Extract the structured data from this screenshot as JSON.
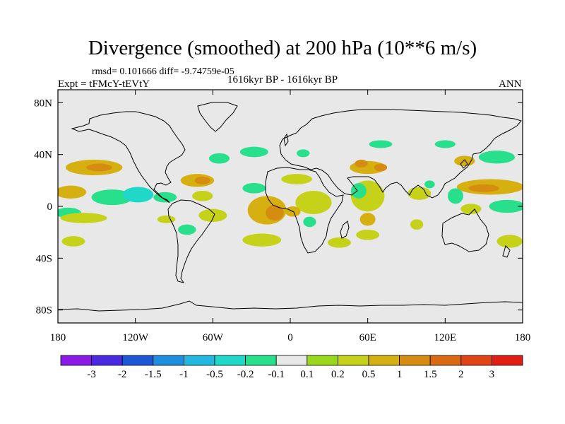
{
  "chart_data": {
    "type": "heatmap",
    "title": "Divergence (smoothed) at 200 hPa (10**6 m/s)",
    "stats_text": "rmsd= 0.101666  diff= -9.74759e-05",
    "experiment": "Expt = tFMcY-tEVtY",
    "period": "1616kyr BP - 1616kyr BP",
    "season": "ANN",
    "xlim": [
      -180,
      180
    ],
    "ylim": [
      -90,
      90
    ],
    "x_ticks": [
      {
        "value": -180,
        "label": "180"
      },
      {
        "value": -120,
        "label": "120W"
      },
      {
        "value": -60,
        "label": "60W"
      },
      {
        "value": 0,
        "label": "0"
      },
      {
        "value": 60,
        "label": "60E"
      },
      {
        "value": 120,
        "label": "120E"
      },
      {
        "value": 180,
        "label": "180"
      }
    ],
    "y_ticks": [
      {
        "value": 80,
        "label": "80N"
      },
      {
        "value": 40,
        "label": "40N"
      },
      {
        "value": 0,
        "label": "0"
      },
      {
        "value": -40,
        "label": "40S"
      },
      {
        "value": -80,
        "label": "80S"
      }
    ],
    "colorbar": {
      "colors": [
        "#8c1ae6",
        "#4a2ae0",
        "#1c57d6",
        "#1e8fe0",
        "#23b8e0",
        "#20d8c8",
        "#28e08c",
        "#e8e8e8",
        "#9ad81e",
        "#c6d21a",
        "#d6b010",
        "#d68c10",
        "#da6a12",
        "#e04414",
        "#e01e14"
      ],
      "labels": [
        "-3",
        "-2",
        "-1.5",
        "-1",
        "-0.5",
        "-0.2",
        "-0.1",
        "0.1",
        "0.2",
        "0.5",
        "1",
        "1.5",
        "2",
        "3"
      ]
    },
    "blobs": [
      {
        "lon": -152,
        "lat": 30,
        "rx": 22,
        "ry": 6,
        "level": 0.5
      },
      {
        "lon": -148,
        "lat": 30,
        "rx": 10,
        "ry": 3,
        "level": 1.0
      },
      {
        "lon": -170,
        "lat": 11,
        "rx": 12,
        "ry": 5,
        "level": 0.5
      },
      {
        "lon": -138,
        "lat": 7,
        "rx": 16,
        "ry": 6,
        "level": -0.2
      },
      {
        "lon": -118,
        "lat": 9,
        "rx": 12,
        "ry": 6,
        "level": -0.5
      },
      {
        "lon": -97,
        "lat": 7,
        "rx": 9,
        "ry": 4,
        "level": -0.2
      },
      {
        "lon": -172,
        "lat": -5,
        "rx": 10,
        "ry": 4,
        "level": -0.2
      },
      {
        "lon": -160,
        "lat": -9,
        "rx": 18,
        "ry": 4,
        "level": 0.2
      },
      {
        "lon": -168,
        "lat": -27,
        "rx": 9,
        "ry": 4,
        "level": 0.2
      },
      {
        "lon": -96,
        "lat": -10,
        "rx": 7,
        "ry": 3,
        "level": 0.2
      },
      {
        "lon": -72,
        "lat": 20,
        "rx": 13,
        "ry": 5,
        "level": 0.5
      },
      {
        "lon": -68,
        "lat": 20,
        "rx": 6,
        "ry": 3,
        "level": 1.0
      },
      {
        "lon": -55,
        "lat": 37,
        "rx": 8,
        "ry": 4,
        "level": -0.2
      },
      {
        "lon": -68,
        "lat": 8,
        "rx": 8,
        "ry": 4,
        "level": 0.2
      },
      {
        "lon": -60,
        "lat": -7,
        "rx": 11,
        "ry": 5,
        "level": 0.2
      },
      {
        "lon": -80,
        "lat": -18,
        "rx": 7,
        "ry": 4,
        "level": -0.2
      },
      {
        "lon": -28,
        "lat": 42,
        "rx": 11,
        "ry": 4,
        "level": -0.2
      },
      {
        "lon": -28,
        "lat": 14,
        "rx": 9,
        "ry": 4,
        "level": -0.2
      },
      {
        "lon": 5,
        "lat": 21,
        "rx": 12,
        "ry": 4,
        "level": 0.2
      },
      {
        "lon": -18,
        "lat": -3,
        "rx": 15,
        "ry": 11,
        "level": 0.5
      },
      {
        "lon": -12,
        "lat": -5,
        "rx": 7,
        "ry": 6,
        "level": 1.0
      },
      {
        "lon": -22,
        "lat": -26,
        "rx": 15,
        "ry": 5,
        "level": 0.2
      },
      {
        "lon": 18,
        "lat": 3,
        "rx": 14,
        "ry": 9,
        "level": 0.2
      },
      {
        "lon": 15,
        "lat": -12,
        "rx": 5,
        "ry": 4,
        "level": -0.2
      },
      {
        "lon": 2,
        "lat": -4,
        "rx": 6,
        "ry": 4,
        "level": 0.5
      },
      {
        "lon": 60,
        "lat": 30,
        "rx": 14,
        "ry": 5,
        "level": 0.5
      },
      {
        "lon": 55,
        "lat": 33,
        "rx": 5,
        "ry": 3,
        "level": 1.0
      },
      {
        "lon": 70,
        "lat": 30,
        "rx": 5,
        "ry": 3,
        "level": 1.0
      },
      {
        "lon": 60,
        "lat": 8,
        "rx": 13,
        "ry": 12,
        "level": 0.2
      },
      {
        "lon": 53,
        "lat": 12,
        "rx": 6,
        "ry": 6,
        "level": -0.2
      },
      {
        "lon": 60,
        "lat": -10,
        "rx": 6,
        "ry": 5,
        "level": 0.5
      },
      {
        "lon": 60,
        "lat": -22,
        "rx": 9,
        "ry": 4,
        "level": 0.2
      },
      {
        "lon": 38,
        "lat": -28,
        "rx": 9,
        "ry": 4,
        "level": 0.2
      },
      {
        "lon": 10,
        "lat": 41,
        "rx": 5,
        "ry": 3,
        "level": -0.2
      },
      {
        "lon": 70,
        "lat": 48,
        "rx": 9,
        "ry": 3,
        "level": -0.2
      },
      {
        "lon": 100,
        "lat": 10,
        "rx": 9,
        "ry": 5,
        "level": 0.2
      },
      {
        "lon": 108,
        "lat": 17,
        "rx": 4,
        "ry": 3,
        "level": -0.2
      },
      {
        "lon": 98,
        "lat": -14,
        "rx": 5,
        "ry": 4,
        "level": 0.2
      },
      {
        "lon": 135,
        "lat": 35,
        "rx": 8,
        "ry": 4,
        "level": 0.5
      },
      {
        "lon": 120,
        "lat": 48,
        "rx": 8,
        "ry": 3,
        "level": -0.2
      },
      {
        "lon": 160,
        "lat": 38,
        "rx": 14,
        "ry": 5,
        "level": -0.2
      },
      {
        "lon": 155,
        "lat": 15,
        "rx": 26,
        "ry": 6,
        "level": 0.5
      },
      {
        "lon": 150,
        "lat": 14,
        "rx": 12,
        "ry": 3,
        "level": 1.0
      },
      {
        "lon": 128,
        "lat": 8,
        "rx": 6,
        "ry": 6,
        "level": -0.2
      },
      {
        "lon": 168,
        "lat": 0,
        "rx": 14,
        "ry": 5,
        "level": -0.2
      },
      {
        "lon": 140,
        "lat": -2,
        "rx": 8,
        "ry": 4,
        "level": 0.2
      },
      {
        "lon": 170,
        "lat": -27,
        "rx": 10,
        "ry": 5,
        "level": 0.2
      }
    ]
  }
}
